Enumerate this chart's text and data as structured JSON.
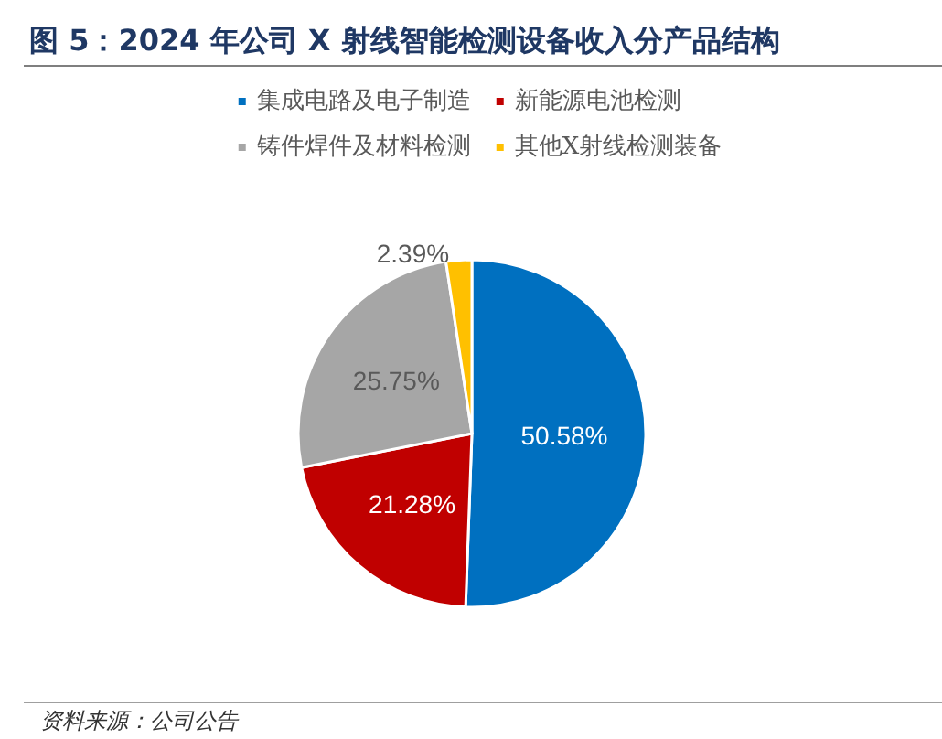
{
  "chart_data": {
    "type": "pie",
    "title": "图 5：2024 年公司 X 射线智能检测设备收入分产品结构",
    "categories": [
      "集成电路及电子制造",
      "新能源电池检测",
      "铸件焊件及材料检测",
      "其他X射线检测装备"
    ],
    "values": [
      50.58,
      21.28,
      25.75,
      2.39
    ],
    "colors": [
      "#0070c0",
      "#c00000",
      "#a6a6a6",
      "#ffc000"
    ],
    "value_labels": [
      "50.58%",
      "21.28%",
      "25.75%",
      "2.39%"
    ],
    "legend": "top",
    "annotations": [
      "资料来源：公司公告"
    ]
  }
}
